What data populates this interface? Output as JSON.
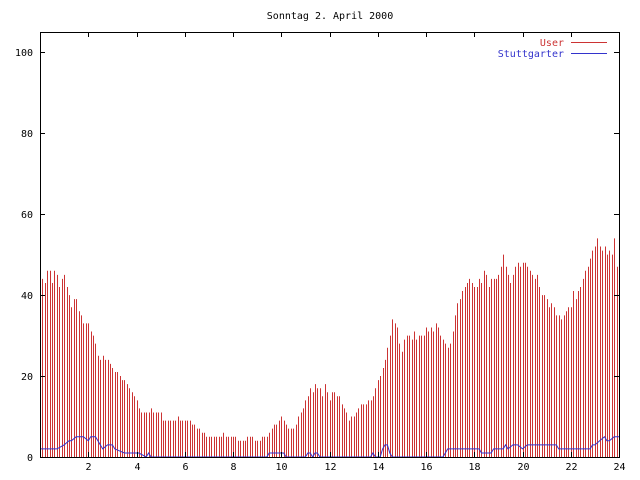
{
  "chart_data": {
    "type": "bar",
    "title": "Sonntag 2. April 2000",
    "xlabel": "",
    "ylabel": "",
    "xlim": [
      0,
      24
    ],
    "ylim": [
      0,
      105
    ],
    "x_ticks": [
      "2",
      "4",
      "6",
      "8",
      "10",
      "12",
      "14",
      "16",
      "18",
      "20",
      "22",
      "24"
    ],
    "y_ticks": [
      "0",
      "20",
      "40",
      "60",
      "80",
      "100"
    ],
    "legend_position": "top-right",
    "grid": false,
    "series": [
      {
        "name": "User",
        "style": "impulses",
        "color": "#cc3333",
        "x": [
          0.0,
          0.1,
          0.2,
          0.3,
          0.4,
          0.5,
          0.6,
          0.7,
          0.8,
          0.9,
          1.0,
          1.1,
          1.2,
          1.3,
          1.4,
          1.5,
          1.6,
          1.7,
          1.8,
          1.9,
          2.0,
          2.1,
          2.2,
          2.3,
          2.4,
          2.5,
          2.6,
          2.7,
          2.8,
          2.9,
          3.0,
          3.1,
          3.2,
          3.3,
          3.4,
          3.5,
          3.6,
          3.7,
          3.8,
          3.9,
          4.0,
          4.1,
          4.2,
          4.3,
          4.4,
          4.5,
          4.6,
          4.7,
          4.8,
          4.9,
          5.0,
          5.1,
          5.2,
          5.3,
          5.4,
          5.5,
          5.6,
          5.7,
          5.8,
          5.9,
          6.0,
          6.1,
          6.2,
          6.3,
          6.4,
          6.5,
          6.6,
          6.7,
          6.8,
          6.9,
          7.0,
          7.1,
          7.2,
          7.3,
          7.4,
          7.5,
          7.6,
          7.7,
          7.8,
          7.9,
          8.0,
          8.1,
          8.2,
          8.3,
          8.4,
          8.5,
          8.6,
          8.7,
          8.8,
          8.9,
          9.0,
          9.1,
          9.2,
          9.3,
          9.4,
          9.5,
          9.6,
          9.7,
          9.8,
          9.9,
          10.0,
          10.1,
          10.2,
          10.3,
          10.4,
          10.5,
          10.6,
          10.7,
          10.8,
          10.9,
          11.0,
          11.1,
          11.2,
          11.3,
          11.4,
          11.5,
          11.6,
          11.7,
          11.8,
          11.9,
          12.0,
          12.1,
          12.2,
          12.3,
          12.4,
          12.5,
          12.6,
          12.7,
          12.8,
          12.9,
          13.0,
          13.1,
          13.2,
          13.3,
          13.4,
          13.5,
          13.6,
          13.7,
          13.8,
          13.9,
          14.0,
          14.1,
          14.2,
          14.3,
          14.4,
          14.5,
          14.6,
          14.7,
          14.8,
          14.9,
          15.0,
          15.1,
          15.2,
          15.3,
          15.4,
          15.5,
          15.6,
          15.7,
          15.8,
          15.9,
          16.0,
          16.1,
          16.2,
          16.3,
          16.4,
          16.5,
          16.6,
          16.7,
          16.8,
          16.9,
          17.0,
          17.1,
          17.2,
          17.3,
          17.4,
          17.5,
          17.6,
          17.7,
          17.8,
          17.9,
          18.0,
          18.1,
          18.2,
          18.3,
          18.4,
          18.5,
          18.6,
          18.7,
          18.8,
          18.9,
          19.0,
          19.1,
          19.2,
          19.3,
          19.4,
          19.5,
          19.6,
          19.7,
          19.8,
          19.9,
          20.0,
          20.1,
          20.2,
          20.3,
          20.4,
          20.5,
          20.6,
          20.7,
          20.8,
          20.9,
          21.0,
          21.1,
          21.2,
          21.3,
          21.4,
          21.5,
          21.6,
          21.7,
          21.8,
          21.9,
          22.0,
          22.1,
          22.2,
          22.3,
          22.4,
          22.5,
          22.6,
          22.7,
          22.8,
          22.9,
          23.0,
          23.1,
          23.2,
          23.3,
          23.4,
          23.5,
          23.6,
          23.7,
          23.8,
          23.9
        ],
        "values": [
          42,
          44,
          43,
          46,
          46,
          43,
          46,
          45,
          42,
          44,
          45,
          42,
          40,
          37,
          39,
          39,
          36,
          35,
          33,
          33,
          33,
          31,
          30,
          28,
          25,
          24,
          25,
          24,
          24,
          23,
          22,
          21,
          21,
          20,
          19,
          19,
          18,
          17,
          16,
          15,
          14,
          12,
          11,
          11,
          11,
          11,
          12,
          11,
          11,
          11,
          11,
          9,
          9,
          9,
          9,
          9,
          9,
          10,
          9,
          9,
          9,
          9,
          9,
          8,
          8,
          7,
          7,
          6,
          6,
          5,
          5,
          5,
          5,
          5,
          5,
          5,
          6,
          5,
          5,
          5,
          5,
          5,
          4,
          4,
          4,
          4,
          5,
          5,
          5,
          4,
          4,
          4,
          5,
          5,
          5,
          6,
          7,
          8,
          8,
          9,
          10,
          9,
          8,
          7,
          7,
          7,
          8,
          10,
          11,
          12,
          14,
          15,
          17,
          16,
          18,
          17,
          17,
          15,
          18,
          16,
          14,
          16,
          16,
          15,
          15,
          13,
          12,
          11,
          9,
          10,
          10,
          11,
          12,
          13,
          13,
          13,
          14,
          14,
          15,
          17,
          19,
          20,
          22,
          24,
          27,
          30,
          34,
          33,
          32,
          28,
          26,
          29,
          30,
          30,
          29,
          31,
          29,
          30,
          30,
          30,
          32,
          31,
          32,
          31,
          33,
          32,
          30,
          29,
          28,
          27,
          28,
          31,
          35,
          38,
          39,
          41,
          42,
          43,
          44,
          43,
          42,
          42,
          44,
          43,
          46,
          45,
          42,
          44,
          44,
          44,
          45,
          47,
          50,
          47,
          45,
          43,
          45,
          47,
          48,
          47,
          48,
          48,
          47,
          46,
          45,
          44,
          45,
          42,
          40,
          40,
          39,
          37,
          38,
          37,
          35,
          35,
          34,
          35,
          36,
          37,
          37,
          41,
          39,
          41,
          42,
          44,
          46,
          47,
          49,
          51,
          52,
          54,
          52,
          51,
          52,
          50,
          51,
          50,
          54,
          47
        ]
      },
      {
        "name": "Stuttgarter",
        "style": "lines",
        "color": "#3333cc",
        "x": [
          0,
          0.7,
          1.0,
          1.2,
          1.3,
          1.5,
          1.8,
          2.0,
          2.1,
          2.3,
          2.4,
          2.5,
          2.6,
          2.8,
          2.9,
          3.0,
          3.1,
          3.5,
          4.1,
          4.4,
          4.5,
          4.6,
          4.7,
          4.8,
          9.4,
          9.5,
          9.6,
          10.1,
          10.2,
          10.3,
          11.0,
          11.1,
          11.2,
          11.3,
          11.4,
          11.5,
          11.6,
          13.7,
          13.8,
          13.9,
          14.0,
          14.1,
          14.2,
          14.3,
          14.4,
          14.5,
          14.6,
          16.7,
          16.8,
          16.9,
          17.0,
          17.1,
          17.2,
          18.2,
          18.3,
          18.5,
          18.7,
          18.8,
          19.0,
          19.2,
          19.3,
          19.4,
          19.6,
          19.8,
          20.0,
          20.2,
          20.3,
          20.4,
          21.4,
          21.5,
          22.3,
          22.5,
          22.8,
          22.9,
          23.0,
          23.2,
          23.4,
          23.5,
          23.6,
          23.8,
          24.0
        ],
        "values": [
          2,
          2,
          3,
          4,
          4,
          5,
          5,
          4,
          5,
          5,
          4,
          3,
          2,
          3,
          3,
          3,
          2,
          1,
          1,
          0,
          1,
          0,
          0,
          0,
          0,
          1,
          1,
          1,
          0,
          0,
          0,
          1,
          1,
          0,
          1,
          1,
          0,
          0,
          1,
          0,
          0,
          0,
          2,
          3,
          3,
          1,
          0,
          0,
          1,
          2,
          2,
          2,
          2,
          2,
          1,
          1,
          1,
          2,
          2,
          2,
          3,
          2,
          3,
          3,
          2,
          3,
          3,
          3,
          3,
          2,
          2,
          2,
          2,
          3,
          3,
          4,
          5,
          4,
          4,
          5,
          5
        ]
      }
    ]
  }
}
